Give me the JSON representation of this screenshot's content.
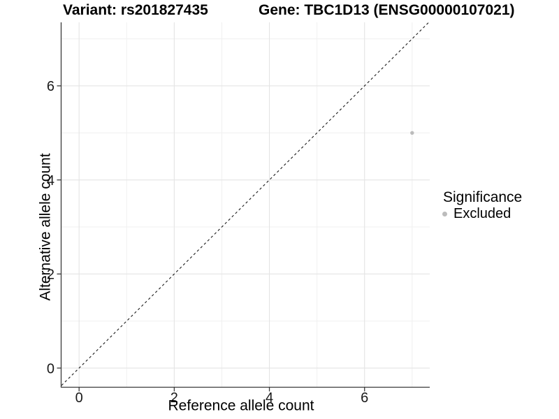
{
  "chart_data": {
    "type": "scatter",
    "title_left": "Variant: rs201827435",
    "title_right": "Gene: TBC1D13 (ENSG00000107021)",
    "xlabel": "Reference allele count",
    "ylabel": "Alternative allele count",
    "xlim": [
      -0.37,
      7.37
    ],
    "ylim": [
      -0.4,
      7.35
    ],
    "x_ticks": [
      0,
      2,
      4,
      6
    ],
    "y_ticks": [
      0,
      2,
      4,
      6
    ],
    "x_minor_gridlines": [
      1,
      3,
      5,
      7
    ],
    "y_minor_gridlines": [
      1,
      3,
      5,
      7
    ],
    "grid": "major+minor",
    "identity_line": {
      "slope": 1,
      "intercept": 0,
      "style": "dashed",
      "color": "#1a1a1a"
    },
    "series": [
      {
        "name": "Excluded",
        "color": "#bcbcbc",
        "marker": "circle",
        "points": [
          [
            7,
            5
          ]
        ]
      }
    ],
    "legend": {
      "title": "Significance",
      "position": "right",
      "entries": [
        {
          "label": "Excluded",
          "color": "#bcbcbc",
          "marker": "circle"
        }
      ]
    },
    "colors": {
      "panel_background": "#ffffff",
      "grid_major": "#e4e4e4",
      "grid_minor": "#f0f0f0",
      "axis_line": "#3a3a3a",
      "tick_label": "#1a1a1a",
      "point": "#bcbcbc"
    }
  }
}
